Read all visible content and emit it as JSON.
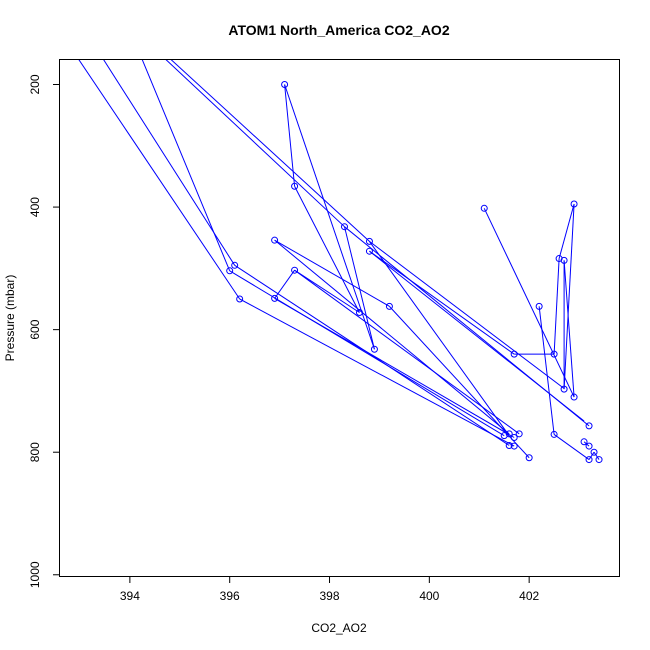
{
  "chart_data": {
    "type": "line",
    "title": "ATOM1 North_America CO2_AO2",
    "xlabel": "CO2_AO2",
    "ylabel": "Pressure (mbar)",
    "xlim": [
      392.6,
      403.8
    ],
    "ylim": [
      1002,
      160
    ],
    "y_reversed": true,
    "x_ticks": [
      394,
      396,
      398,
      400,
      402
    ],
    "y_ticks": [
      200,
      400,
      600,
      800,
      1000
    ],
    "grid": false,
    "color": "#0000ff",
    "series": [
      {
        "lines": [
          [
            [
              393.4,
              150
            ],
            [
              396.1,
              495
            ]
          ],
          [
            [
              394.2,
              150
            ],
            [
              396.0,
              504
            ]
          ],
          [
            [
              394.7,
              150
            ],
            [
              398.8,
              456
            ]
          ],
          [
            [
              394.6,
              150
            ],
            [
              398.3,
              432
            ]
          ],
          [
            [
              392.9,
              150
            ],
            [
              396.2,
              550
            ]
          ],
          [
            [
              397.1,
              200
            ],
            [
              398.9,
              632
            ]
          ],
          [
            [
              397.1,
              200
            ],
            [
              397.3,
              366
            ]
          ],
          [
            [
              397.3,
              366
            ],
            [
              398.6,
              572
            ]
          ],
          [
            [
              398.6,
              572
            ],
            [
              397.3,
              503
            ]
          ],
          [
            [
              397.3,
              503
            ],
            [
              396.9,
              549
            ]
          ],
          [
            [
              396.0,
              504
            ],
            [
              401.5,
              773
            ]
          ],
          [
            [
              396.1,
              495
            ],
            [
              401.6,
              789
            ]
          ],
          [
            [
              396.2,
              550
            ],
            [
              401.7,
              790
            ]
          ],
          [
            [
              396.9,
              454
            ],
            [
              399.2,
              562
            ]
          ],
          [
            [
              399.2,
              562
            ],
            [
              402.0,
              809
            ]
          ],
          [
            [
              396.9,
              454
            ],
            [
              401.6,
              770
            ]
          ],
          [
            [
              397.3,
              503
            ],
            [
              401.8,
              770
            ]
          ],
          [
            [
              396.9,
              549
            ],
            [
              401.7,
              776
            ]
          ],
          [
            [
              398.8,
              456
            ],
            [
              401.6,
              773
            ]
          ],
          [
            [
              398.8,
              456
            ],
            [
              402.7,
              696
            ]
          ],
          [
            [
              398.8,
              472
            ],
            [
              401.7,
              640
            ]
          ],
          [
            [
              398.8,
              472
            ],
            [
              403.1,
              749
            ]
          ],
          [
            [
              398.9,
              632
            ],
            [
              398.3,
              432
            ]
          ],
          [
            [
              398.3,
              432
            ],
            [
              403.2,
              757
            ]
          ],
          [
            [
              401.7,
              640
            ],
            [
              402.5,
              640
            ]
          ],
          [
            [
              402.5,
              640
            ],
            [
              402.6,
              484
            ]
          ],
          [
            [
              402.6,
              484
            ],
            [
              402.9,
              395
            ]
          ],
          [
            [
              402.9,
              395
            ],
            [
              402.7,
              697
            ]
          ],
          [
            [
              402.7,
              697
            ],
            [
              402.7,
              487
            ]
          ],
          [
            [
              402.7,
              487
            ],
            [
              402.9,
              710
            ]
          ],
          [
            [
              402.9,
              710
            ],
            [
              401.1,
              402
            ]
          ],
          [
            [
              402.2,
              562
            ],
            [
              402.5,
              771
            ]
          ],
          [
            [
              402.5,
              771
            ],
            [
              403.2,
              812
            ]
          ],
          [
            [
              403.2,
              812
            ],
            [
              403.3,
              800
            ]
          ],
          [
            [
              403.3,
              800
            ],
            [
              403.4,
              812
            ]
          ],
          [
            [
              403.1,
              783
            ],
            [
              403.2,
              790
            ]
          ]
        ],
        "points": [
          [
            397.1,
            200
          ],
          [
            397.3,
            366
          ],
          [
            398.3,
            432
          ],
          [
            398.8,
            456
          ],
          [
            398.8,
            472
          ],
          [
            396.9,
            454
          ],
          [
            396.1,
            495
          ],
          [
            396.0,
            504
          ],
          [
            397.3,
            503
          ],
          [
            396.2,
            550
          ],
          [
            396.9,
            549
          ],
          [
            399.2,
            562
          ],
          [
            398.6,
            572
          ],
          [
            398.9,
            632
          ],
          [
            401.1,
            402
          ],
          [
            402.9,
            395
          ],
          [
            402.6,
            484
          ],
          [
            402.7,
            487
          ],
          [
            402.2,
            562
          ],
          [
            401.7,
            640
          ],
          [
            402.5,
            640
          ],
          [
            402.7,
            697
          ],
          [
            402.9,
            710
          ],
          [
            403.2,
            757
          ],
          [
            402.5,
            771
          ],
          [
            401.5,
            773
          ],
          [
            401.6,
            770
          ],
          [
            401.8,
            770
          ],
          [
            401.7,
            776
          ],
          [
            401.6,
            789
          ],
          [
            401.7,
            790
          ],
          [
            402.0,
            809
          ],
          [
            403.1,
            783
          ],
          [
            403.2,
            790
          ],
          [
            403.3,
            800
          ],
          [
            403.2,
            812
          ],
          [
            403.4,
            812
          ]
        ]
      }
    ]
  }
}
